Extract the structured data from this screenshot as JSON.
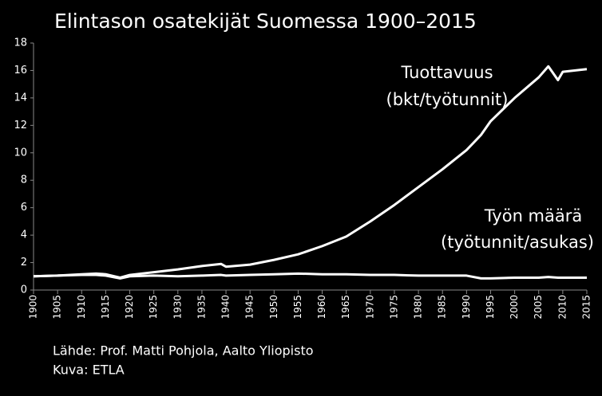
{
  "chart_data": {
    "type": "line",
    "title": "Elintason osatekijät Suomessa 1900–2015",
    "x": [
      1900,
      1905,
      1910,
      1913,
      1915,
      1918,
      1920,
      1925,
      1930,
      1935,
      1939,
      1940,
      1945,
      1950,
      1955,
      1960,
      1965,
      1970,
      1975,
      1980,
      1985,
      1990,
      1993,
      1995,
      2000,
      2005,
      2007,
      2009,
      2010,
      2015
    ],
    "series": [
      {
        "name": "Tuottavuus",
        "sublabel": "(bkt/työtunnit)",
        "color": "#ffffff",
        "values": [
          1.0,
          1.05,
          1.15,
          1.2,
          1.15,
          0.9,
          1.1,
          1.3,
          1.5,
          1.75,
          1.9,
          1.7,
          1.85,
          2.2,
          2.6,
          3.2,
          3.9,
          5.0,
          6.2,
          7.5,
          8.8,
          10.2,
          11.3,
          12.3,
          14.0,
          15.5,
          16.3,
          15.3,
          15.9,
          16.1
        ]
      },
      {
        "name": "Työn määrä",
        "sublabel": "(työtunnit/asukas)",
        "color": "#ffffff",
        "values": [
          1.0,
          1.05,
          1.1,
          1.1,
          1.05,
          0.85,
          1.0,
          1.05,
          1.0,
          1.05,
          1.1,
          1.05,
          1.1,
          1.15,
          1.2,
          1.15,
          1.15,
          1.1,
          1.1,
          1.05,
          1.05,
          1.05,
          0.85,
          0.85,
          0.9,
          0.9,
          0.95,
          0.9,
          0.9,
          0.9
        ]
      }
    ],
    "xlim": [
      1900,
      2015
    ],
    "xticks": [
      1900,
      1905,
      1910,
      1915,
      1920,
      1925,
      1930,
      1935,
      1940,
      1945,
      1950,
      1955,
      1960,
      1965,
      1970,
      1975,
      1980,
      1985,
      1990,
      1995,
      2000,
      2005,
      2010,
      2015
    ],
    "ylim": [
      0,
      18
    ],
    "yticks": [
      0,
      2,
      4,
      6,
      8,
      10,
      12,
      14,
      16,
      18
    ],
    "grid": false,
    "notes": [
      "Lähde: Prof. Matti Pohjola, Aalto Yliopisto",
      "Kuva: ETLA"
    ]
  }
}
